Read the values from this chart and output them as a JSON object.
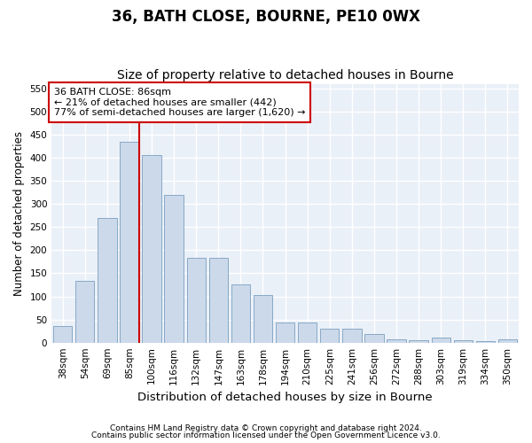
{
  "title": "36, BATH CLOSE, BOURNE, PE10 0WX",
  "subtitle": "Size of property relative to detached houses in Bourne",
  "xlabel": "Distribution of detached houses by size in Bourne",
  "ylabel": "Number of detached properties",
  "categories": [
    "38sqm",
    "54sqm",
    "69sqm",
    "85sqm",
    "100sqm",
    "116sqm",
    "132sqm",
    "147sqm",
    "163sqm",
    "178sqm",
    "194sqm",
    "210sqm",
    "225sqm",
    "241sqm",
    "256sqm",
    "272sqm",
    "288sqm",
    "303sqm",
    "319sqm",
    "334sqm",
    "350sqm"
  ],
  "values": [
    35,
    133,
    270,
    435,
    405,
    320,
    183,
    183,
    125,
    103,
    44,
    44,
    30,
    30,
    19,
    7,
    5,
    10,
    5,
    3,
    8
  ],
  "bar_color": "#ccd9ea",
  "bar_edge_color": "#7a9fc0",
  "vline_x_index": 3,
  "vline_color": "#cc0000",
  "annotation_text": "36 BATH CLOSE: 86sqm\n← 21% of detached houses are smaller (442)\n77% of semi-detached houses are larger (1,620) →",
  "annotation_box_color": "#ffffff",
  "annotation_box_edge": "#cc0000",
  "ylim": [
    0,
    560
  ],
  "yticks": [
    0,
    50,
    100,
    150,
    200,
    250,
    300,
    350,
    400,
    450,
    500,
    550
  ],
  "fig_bg_color": "#ffffff",
  "plot_bg_color": "#eaf0f8",
  "grid_color": "#ffffff",
  "footer1": "Contains HM Land Registry data © Crown copyright and database right 2024.",
  "footer2": "Contains public sector information licensed under the Open Government Licence v3.0.",
  "title_fontsize": 12,
  "subtitle_fontsize": 10,
  "tick_fontsize": 7.5,
  "xlabel_fontsize": 9.5,
  "ylabel_fontsize": 8.5,
  "annotation_fontsize": 8,
  "footer_fontsize": 6.5
}
